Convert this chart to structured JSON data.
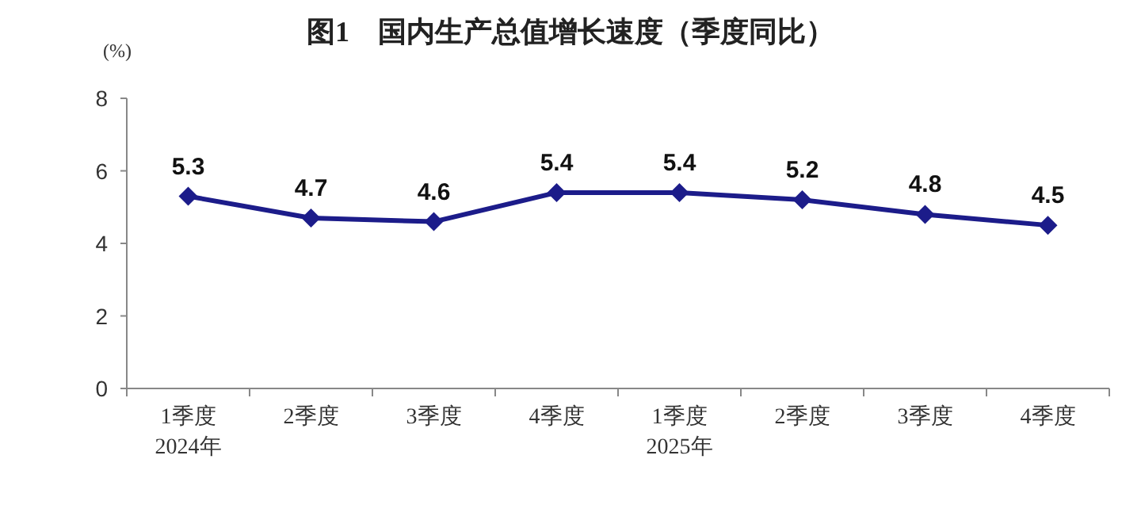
{
  "chart_data": {
    "type": "line",
    "title": "图1　国内生产总值增长速度（季度同比）",
    "ylabel": "(%)",
    "categories": [
      "1季度\n2024年",
      "2季度",
      "3季度",
      "4季度",
      "1季度\n2025年",
      "2季度",
      "3季度",
      "4季度"
    ],
    "series": [
      {
        "color": "#1c1c8a",
        "values": [
          5.3,
          4.7,
          4.6,
          5.4,
          5.4,
          5.2,
          4.8,
          4.5
        ]
      }
    ],
    "ylim": [
      0,
      8
    ],
    "yticks": [
      0,
      2,
      4,
      6,
      8
    ],
    "data_labels": true,
    "marker": "diamond",
    "line_style": "solid"
  }
}
